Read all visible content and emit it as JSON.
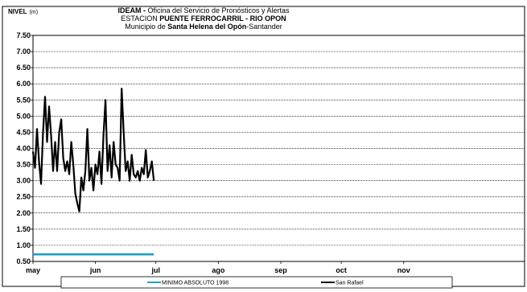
{
  "chart_data": {
    "type": "line",
    "title_lines": [
      {
        "prefix": "IDEAM - ",
        "bold": "",
        "rest": "Oficina del Servicio de Pronósticos y Alertas"
      },
      {
        "prefix": "ESTACION ",
        "bold": "PUENTE FERROCARRIL - RIO OPON",
        "rest": ""
      },
      {
        "prefix": "Municipio de ",
        "bold": "Santa Helena del Opón",
        "rest": "-Santander"
      }
    ],
    "ylabel": "NIVEL",
    "yunit": "(m)",
    "ylim": [
      0.5,
      7.5
    ],
    "yticks": [
      "0.50",
      "1.00",
      "1.50",
      "2.00",
      "2.50",
      "3.00",
      "3.50",
      "4.00",
      "4.50",
      "5.00",
      "5.50",
      "6.00",
      "6.50",
      "7.00",
      "7.50"
    ],
    "xlim": [
      "2010-05-01",
      "2010-12-31"
    ],
    "xticks": [
      {
        "date": "2010-05-01",
        "label": "may"
      },
      {
        "date": "2010-06-01",
        "label": "jun"
      },
      {
        "date": "2010-07-01",
        "label": "jul"
      },
      {
        "date": "2010-08-01",
        "label": "ago"
      },
      {
        "date": "2010-09-01",
        "label": "sep"
      },
      {
        "date": "2010-10-01",
        "label": "oct"
      },
      {
        "date": "2010-11-01",
        "label": "nov"
      }
    ],
    "grid": true,
    "legend_position": "bottom",
    "series": [
      {
        "name": "MINIMO ABSOLUTO 1998",
        "color": "#1ba1c9",
        "x": [
          "2010-05-01",
          "2010-06-30"
        ],
        "y": [
          0.72,
          0.72
        ]
      },
      {
        "name": "San Rafael",
        "color": "#000000",
        "x": [
          "2010-05-01",
          "2010-05-02",
          "2010-05-03",
          "2010-05-04",
          "2010-05-05",
          "2010-05-06",
          "2010-05-07",
          "2010-05-08",
          "2010-05-09",
          "2010-05-10",
          "2010-05-11",
          "2010-05-12",
          "2010-05-13",
          "2010-05-14",
          "2010-05-15",
          "2010-05-16",
          "2010-05-17",
          "2010-05-18",
          "2010-05-19",
          "2010-05-20",
          "2010-05-21",
          "2010-05-22",
          "2010-05-23",
          "2010-05-24",
          "2010-05-25",
          "2010-05-26",
          "2010-05-27",
          "2010-05-28",
          "2010-05-29",
          "2010-05-30",
          "2010-05-31",
          "2010-06-01",
          "2010-06-02",
          "2010-06-03",
          "2010-06-04",
          "2010-06-05",
          "2010-06-06",
          "2010-06-07",
          "2010-06-08",
          "2010-06-09",
          "2010-06-10",
          "2010-06-11",
          "2010-06-12",
          "2010-06-13",
          "2010-06-14",
          "2010-06-15",
          "2010-06-16",
          "2010-06-17",
          "2010-06-18",
          "2010-06-19",
          "2010-06-20",
          "2010-06-21",
          "2010-06-22",
          "2010-06-23",
          "2010-06-24",
          "2010-06-25",
          "2010-06-26",
          "2010-06-27",
          "2010-06-28",
          "2010-06-29",
          "2010-06-30"
        ],
        "y": [
          3.9,
          3.4,
          4.6,
          3.6,
          2.9,
          4.5,
          5.6,
          4.2,
          5.3,
          4.4,
          3.3,
          4.2,
          3.3,
          4.5,
          4.9,
          3.7,
          3.3,
          3.6,
          3.2,
          4.2,
          3.5,
          2.6,
          2.3,
          2.05,
          3.1,
          2.7,
          3.3,
          4.6,
          3.0,
          3.4,
          2.7,
          3.5,
          3.2,
          3.9,
          2.9,
          4.4,
          5.5,
          3.3,
          4.1,
          3.1,
          4.2,
          3.5,
          3.4,
          3.0,
          5.85,
          4.5,
          3.3,
          3.6,
          3.0,
          3.8,
          3.2,
          3.1,
          3.3,
          3.0,
          3.4,
          3.2,
          3.95,
          3.1,
          3.3,
          3.6,
          3.0
        ]
      }
    ]
  }
}
